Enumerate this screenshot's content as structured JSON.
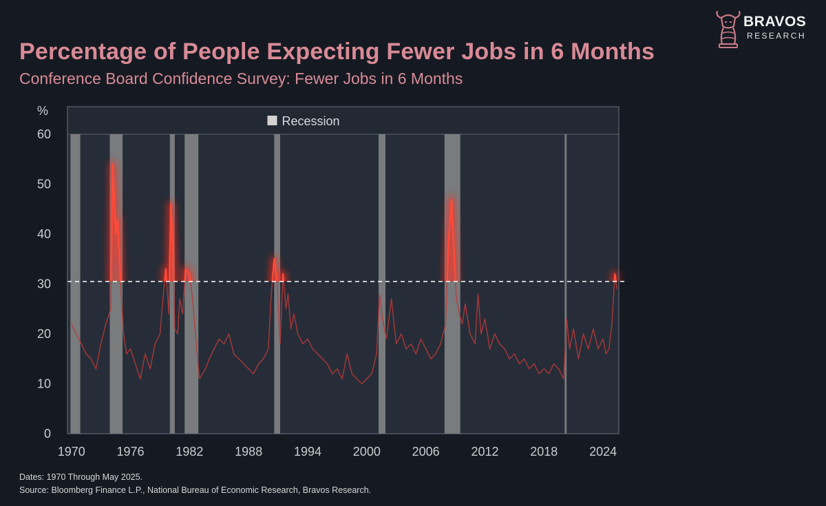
{
  "header": {
    "title": "Percentage of People Expecting Fewer Jobs in 6 Months",
    "subtitle": "Conference Board Confidence Survey: Fewer Jobs in 6 Months"
  },
  "logo": {
    "name": "BRAVOS",
    "sub": "RESEARCH",
    "icon": "bull-knight-icon"
  },
  "footer": {
    "dates": "Dates: 1970 Through May 2025.",
    "source": "Source: Bloomberg Finance L.P., National Bureau of Economic Research, Bravos Research."
  },
  "colors": {
    "background": "#151a22",
    "plot_background": "#262d38",
    "title": "#d98a96",
    "series": "#b83a3a",
    "glow": "#ff2a1a",
    "recession": "#8c8c8c",
    "threshold": "#ffffff"
  },
  "chart_data": {
    "type": "line",
    "title": "Percentage of People Expecting Fewer Jobs in 6 Months",
    "subtitle": "Conference Board Confidence Survey: Fewer Jobs in 6 Months",
    "ylabel": "%",
    "xlabel": "",
    "ylim": [
      0,
      60
    ],
    "xlim": [
      1969.6,
      2025.6
    ],
    "yticks": [
      0,
      10,
      20,
      30,
      40,
      50,
      60
    ],
    "xticks": [
      1970,
      1976,
      1982,
      1988,
      1994,
      2000,
      2006,
      2012,
      2018,
      2024
    ],
    "grid": false,
    "legend": {
      "position": "top-center",
      "entries": [
        "Recession"
      ]
    },
    "threshold": 30.5,
    "recessions": [
      {
        "start": 1969.9,
        "end": 1970.9
      },
      {
        "start": 1973.9,
        "end": 1975.2
      },
      {
        "start": 1980.0,
        "end": 1980.5
      },
      {
        "start": 1981.5,
        "end": 1982.9
      },
      {
        "start": 1990.6,
        "end": 1991.2
      },
      {
        "start": 2001.2,
        "end": 2001.9
      },
      {
        "start": 2007.9,
        "end": 2009.5
      },
      {
        "start": 2020.1,
        "end": 2020.3
      }
    ],
    "series": [
      {
        "name": "Fewer Jobs in 6 Months",
        "x": [
          1970.0,
          1970.5,
          1971.0,
          1971.5,
          1972.0,
          1972.5,
          1973.0,
          1973.5,
          1974.0,
          1974.2,
          1974.5,
          1974.7,
          1975.0,
          1975.3,
          1975.6,
          1976.0,
          1976.5,
          1977.0,
          1977.5,
          1978.0,
          1978.5,
          1979.0,
          1979.3,
          1979.6,
          1979.9,
          1980.1,
          1980.3,
          1980.5,
          1980.8,
          1981.0,
          1981.3,
          1981.6,
          1982.0,
          1982.3,
          1982.6,
          1983.0,
          1983.3,
          1983.6,
          1984.0,
          1984.5,
          1985.0,
          1985.5,
          1986.0,
          1986.5,
          1987.0,
          1987.5,
          1988.0,
          1988.5,
          1989.0,
          1989.5,
          1990.0,
          1990.3,
          1990.6,
          1990.9,
          1991.2,
          1991.5,
          1991.8,
          1992.0,
          1992.3,
          1992.6,
          1993.0,
          1993.5,
          1994.0,
          1994.5,
          1995.0,
          1995.5,
          1996.0,
          1996.5,
          1997.0,
          1997.5,
          1998.0,
          1998.5,
          1999.0,
          1999.5,
          2000.0,
          2000.5,
          2001.0,
          2001.3,
          2001.6,
          2002.0,
          2002.5,
          2003.0,
          2003.5,
          2004.0,
          2004.5,
          2005.0,
          2005.5,
          2006.0,
          2006.5,
          2007.0,
          2007.5,
          2008.0,
          2008.3,
          2008.6,
          2008.9,
          2009.1,
          2009.4,
          2009.7,
          2010.0,
          2010.5,
          2011.0,
          2011.3,
          2011.6,
          2012.0,
          2012.5,
          2013.0,
          2013.5,
          2014.0,
          2014.5,
          2015.0,
          2015.5,
          2016.0,
          2016.5,
          2017.0,
          2017.5,
          2018.0,
          2018.5,
          2019.0,
          2019.5,
          2020.0,
          2020.3,
          2020.6,
          2021.0,
          2021.5,
          2022.0,
          2022.5,
          2023.0,
          2023.5,
          2024.0,
          2024.3,
          2024.6,
          2024.9,
          2025.2,
          2025.4
        ],
        "values": [
          22,
          20,
          18,
          16,
          15,
          13,
          18,
          22,
          25,
          54,
          40,
          43,
          30,
          20,
          16,
          17,
          14,
          11,
          16,
          13,
          18,
          20,
          27,
          33,
          24,
          46,
          38,
          21,
          20,
          27,
          24,
          33,
          32,
          27,
          20,
          11,
          12,
          13,
          15,
          17,
          19,
          18,
          20,
          16,
          15,
          14,
          13,
          12,
          14,
          15,
          17,
          28,
          35,
          30,
          18,
          32,
          25,
          28,
          21,
          24,
          20,
          18,
          19,
          17,
          16,
          15,
          14,
          12,
          13,
          11,
          16,
          12,
          11,
          10,
          11,
          12,
          16,
          28,
          23,
          19,
          27,
          18,
          20,
          17,
          18,
          16,
          19,
          17,
          15,
          16,
          18,
          22,
          38,
          47,
          35,
          27,
          24,
          22,
          26,
          20,
          18,
          28,
          20,
          23,
          17,
          20,
          18,
          17,
          15,
          16,
          14,
          15,
          13,
          14,
          12,
          13,
          12,
          14,
          13,
          11,
          23,
          17,
          21,
          15,
          20,
          17,
          21,
          17,
          19,
          16,
          17,
          22,
          32,
          29
        ]
      }
    ]
  }
}
